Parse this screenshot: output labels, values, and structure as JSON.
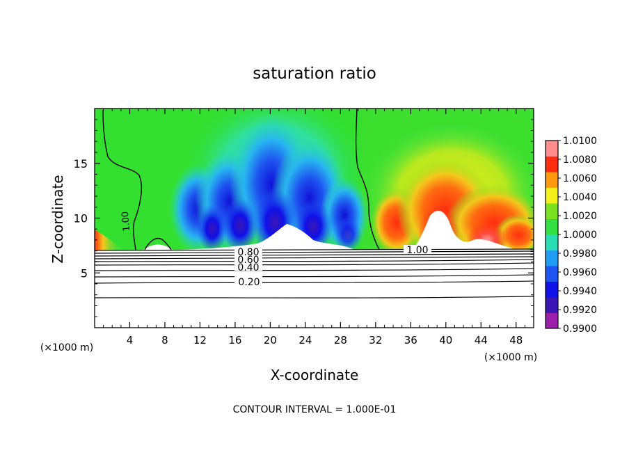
{
  "chart_data": {
    "type": "heatmap",
    "title": "saturation ratio",
    "xlabel": "X-coordinate",
    "ylabel": "Z-coordinate",
    "x_unit": "(×1000 m)",
    "footer": "CONTOUR INTERVAL = 1.000E-01",
    "xlim": [
      0,
      50
    ],
    "ylim": [
      0,
      20
    ],
    "x_ticks": [
      4,
      8,
      12,
      16,
      20,
      24,
      28,
      32,
      36,
      40,
      44,
      48
    ],
    "y_ticks": [
      5,
      10,
      15
    ],
    "colorbar": {
      "min": 0.99,
      "max": 1.01,
      "labels": [
        "1.0100",
        "1.0080",
        "1.0060",
        "1.0040",
        "1.0020",
        "1.0000",
        "0.9980",
        "0.9960",
        "0.9940",
        "0.9920",
        "0.9900"
      ],
      "colors": [
        "#9b1fa8",
        "#3a16b5",
        "#1010e8",
        "#1e54f0",
        "#1e9df2",
        "#28dcb4",
        "#33e043",
        "#7be020",
        "#f3f01c",
        "#ff9a10",
        "#ff2d10",
        "#ff8c8c"
      ]
    },
    "contour_labels": [
      "0.20",
      "0.40",
      "0.60",
      "0.80",
      "1.00",
      "1.00"
    ],
    "contour_levels_below_cloud": [
      {
        "label": "0.20",
        "z": 4.3
      },
      {
        "label": "0.40",
        "z": 5.5
      },
      {
        "label": "0.60",
        "z": 6.2
      },
      {
        "label": "0.80",
        "z": 6.8
      },
      {
        "label": "",
        "z": 2.9
      },
      {
        "label": "",
        "z": 5.0
      },
      {
        "label": "",
        "z": 5.9
      },
      {
        "label": "",
        "z": 6.5
      },
      {
        "label": "",
        "z": 7.1
      }
    ],
    "cloud_base_z": 7.2,
    "grid": false
  }
}
